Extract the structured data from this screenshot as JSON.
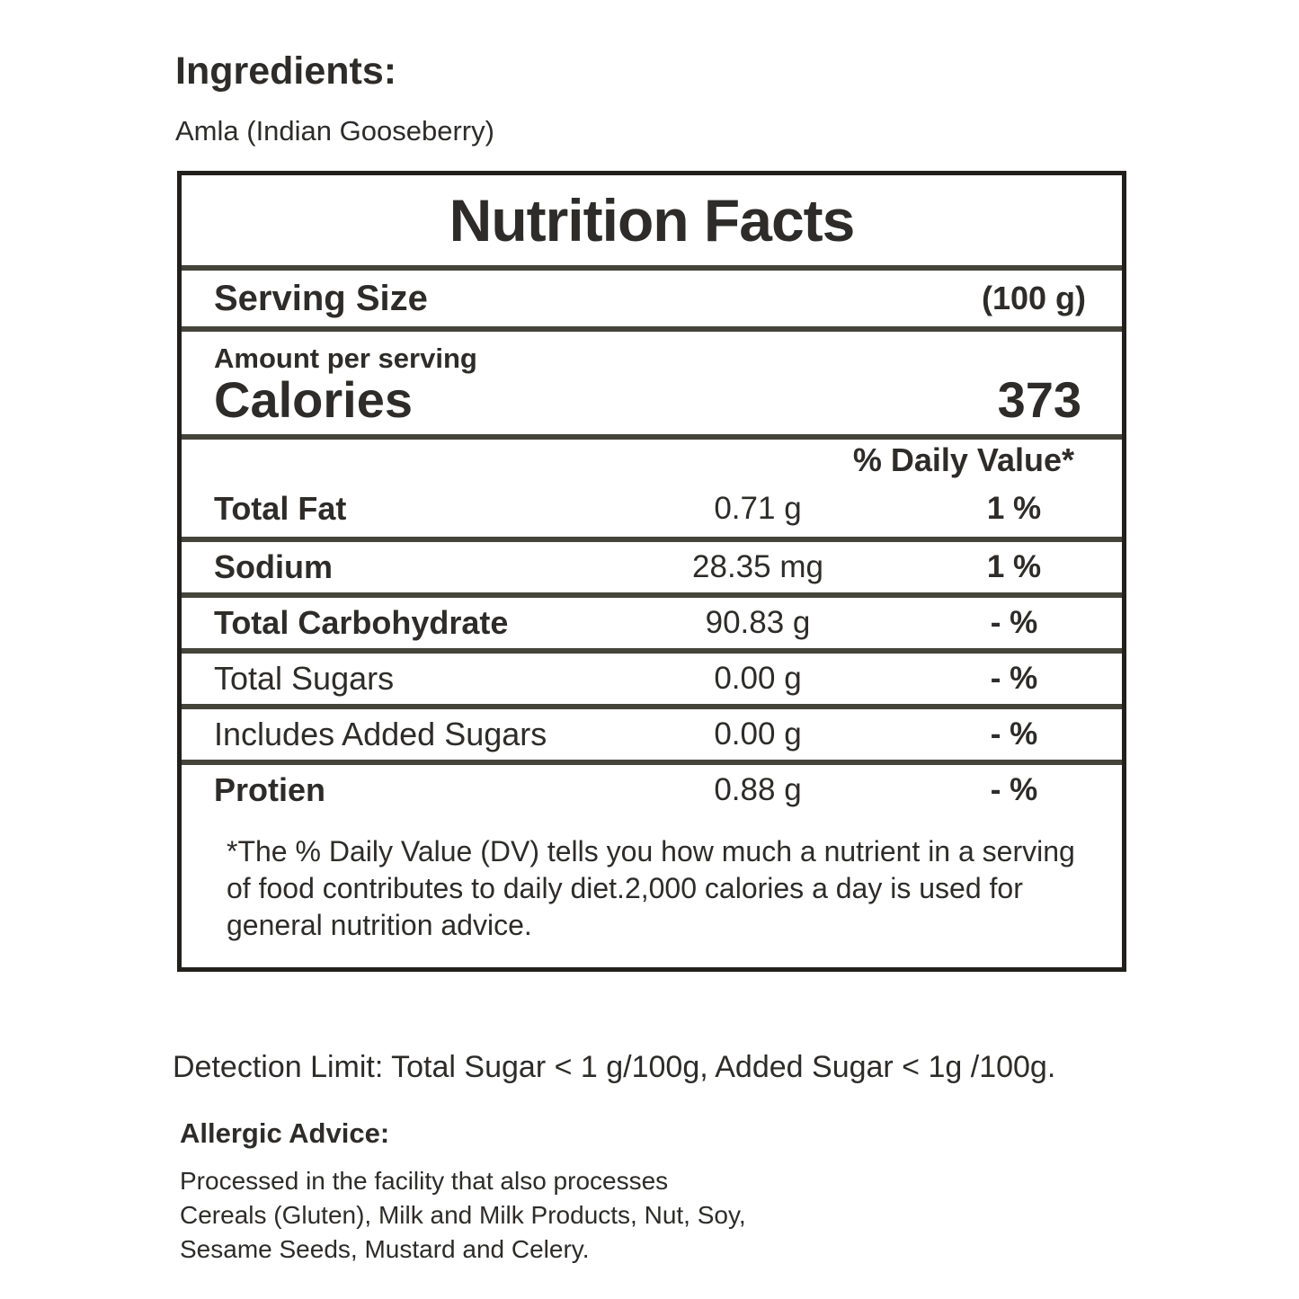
{
  "ingredients": {
    "heading": "Ingredients:",
    "value": "Amla (Indian Gooseberry)"
  },
  "nutrition": {
    "title": "Nutrition Facts",
    "serving_size_label": "Serving Size",
    "serving_size_value": "(100 g)",
    "amount_per_serving": "Amount per serving",
    "calories_label": "Calories",
    "calories_value": "373",
    "daily_value_header": "% Daily Value*",
    "rows": [
      {
        "label": "Total Fat",
        "amount": "0.71 g",
        "dv": "1 %",
        "bold": true
      },
      {
        "label": "Sodium",
        "amount": "28.35 mg",
        "dv": "1 %",
        "bold": true
      },
      {
        "label": "Total Carbohydrate",
        "amount": "90.83 g",
        "dv": "- %",
        "bold": true
      },
      {
        "label": "Total Sugars",
        "amount": "0.00 g",
        "dv": "- %",
        "bold": false
      },
      {
        "label": "Includes Added Sugars",
        "amount": "0.00 g",
        "dv": "- %",
        "bold": false
      },
      {
        "label": "Protien",
        "amount": "0.88 g",
        "dv": "- %",
        "bold": true
      }
    ],
    "footnote": "*The % Daily Value (DV) tells you how much a nutrient in a serving of food contributes to daily diet.2,000 calories a day is used for general nutrition advice."
  },
  "detection_limit": "Detection Limit: Total Sugar < 1 g/100g, Added Sugar < 1g /100g.",
  "allergic_advice": {
    "heading": "Allergic Advice:",
    "lines": [
      "Processed in the facility that also processes",
      "Cereals (Gluten), Milk and Milk Products, Nut, Soy,",
      "Sesame Seeds, Mustard and Celery."
    ]
  },
  "colors": {
    "outer_border": "#21201c",
    "divider": "#45443a",
    "text": "#2d2c2a",
    "background": "#ffffff"
  }
}
